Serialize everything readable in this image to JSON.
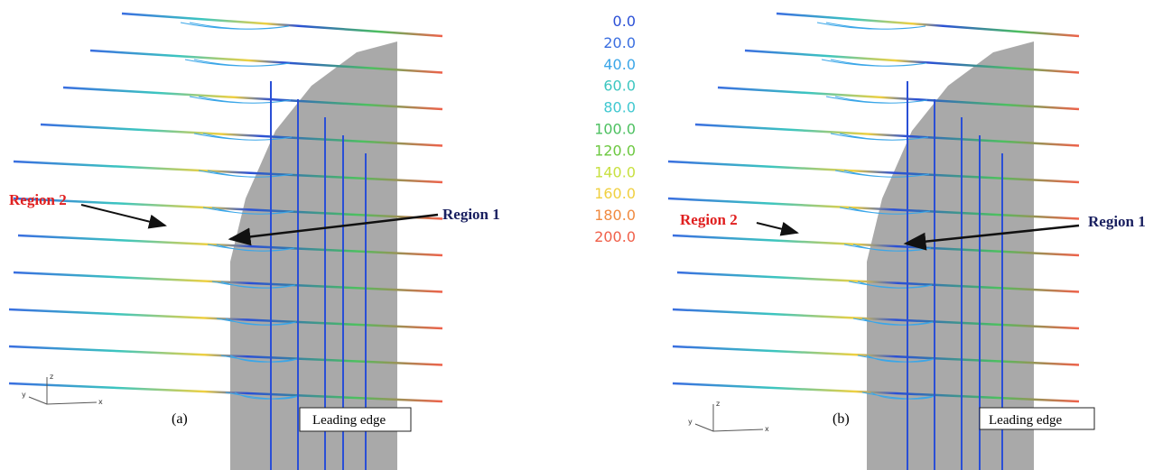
{
  "legend": {
    "levels": [
      "0.0",
      "20.0",
      "40.0",
      "60.0",
      "80.0",
      "100.0",
      "120.0",
      "140.0",
      "160.0",
      "180.0",
      "200.0"
    ],
    "colors": [
      "#2a4fd6",
      "#3a6ee0",
      "#3aa6e8",
      "#3cc6c0",
      "#40c8d0",
      "#4cc060",
      "#6cc840",
      "#c8e040",
      "#f0d040",
      "#f08a40",
      "#f0604a"
    ]
  },
  "panels": [
    {
      "region_2": "Region 2",
      "region_1": "Region 1",
      "label": "(a)",
      "leading_edge": "Leading edge",
      "axis_z": "z",
      "axis_x": "x",
      "axis_y": "y"
    },
    {
      "region_2": "Region 2",
      "region_1": "Region 1",
      "label": "(b)",
      "leading_edge": "Leading edge",
      "axis_z": "z",
      "axis_x": "x",
      "axis_y": "y"
    }
  ]
}
